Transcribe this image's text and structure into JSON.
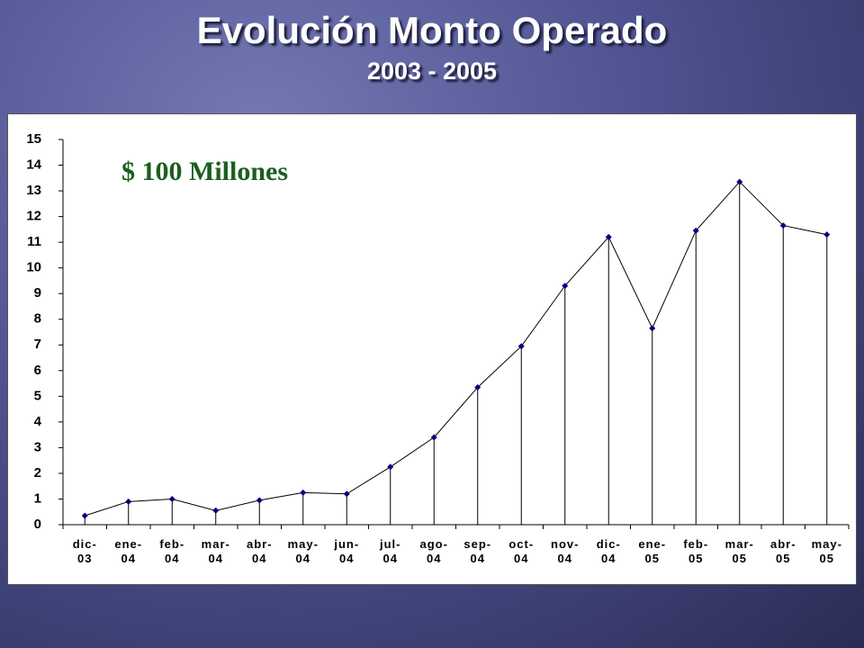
{
  "title": "Evolución Monto Operado",
  "subtitle": "2003 - 2005",
  "chart_data": {
    "type": "line",
    "annotation": "$ 100 Millones",
    "categories": [
      "dic-03",
      "ene-04",
      "feb-04",
      "mar-04",
      "abr-04",
      "may-04",
      "jun-04",
      "jul-04",
      "ago-04",
      "sep-04",
      "oct-04",
      "nov-04",
      "dic-04",
      "ene-05",
      "feb-05",
      "mar-05",
      "abr-05",
      "may-05"
    ],
    "values": [
      0.35,
      0.9,
      1.0,
      0.55,
      0.95,
      1.25,
      1.2,
      2.25,
      3.4,
      5.35,
      6.95,
      9.3,
      11.2,
      7.65,
      11.45,
      13.35,
      11.65,
      11.3
    ],
    "color": "#000080",
    "drop_lines": true,
    "ylim": [
      0,
      15
    ],
    "yticks": [
      0,
      1,
      2,
      3,
      4,
      5,
      6,
      7,
      8,
      9,
      10,
      11,
      12,
      13,
      14,
      15
    ]
  }
}
